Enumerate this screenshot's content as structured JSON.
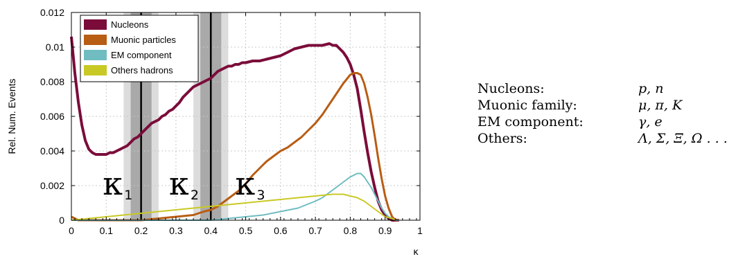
{
  "chart_data": {
    "type": "line",
    "title": "",
    "xlabel": "κ",
    "ylabel": "Rel. Num. Events",
    "xlim": [
      0,
      1
    ],
    "ylim": [
      0,
      0.012
    ],
    "xticks": [
      0,
      0.1,
      0.2,
      0.3,
      0.4,
      0.5,
      0.6,
      0.7,
      0.8,
      0.9,
      1
    ],
    "xtick_labels": [
      "0",
      "0.1",
      "0.2",
      "0.3",
      "0.4",
      "0.5",
      "0.6",
      "0.7",
      "0.8",
      "0.9",
      "1"
    ],
    "yticks": [
      0,
      0.002,
      0.004,
      0.006,
      0.008,
      0.01,
      0.012
    ],
    "ytick_labels": [
      "0",
      "0.002",
      "0.004",
      "0.006",
      "0.008",
      "0.01",
      "0.012"
    ],
    "grid": true,
    "legend_position": "top-left",
    "series": [
      {
        "name": "Nucleons",
        "color": "#7b0c3a",
        "points": [
          [
            0.0,
            0.0106
          ],
          [
            0.01,
            0.0085
          ],
          [
            0.02,
            0.0068
          ],
          [
            0.03,
            0.0055
          ],
          [
            0.04,
            0.0046
          ],
          [
            0.05,
            0.0041
          ],
          [
            0.06,
            0.0039
          ],
          [
            0.07,
            0.0038
          ],
          [
            0.08,
            0.0038
          ],
          [
            0.09,
            0.0038
          ],
          [
            0.1,
            0.0038
          ],
          [
            0.11,
            0.0039
          ],
          [
            0.12,
            0.0039
          ],
          [
            0.13,
            0.004
          ],
          [
            0.14,
            0.0041
          ],
          [
            0.15,
            0.0042
          ],
          [
            0.16,
            0.0043
          ],
          [
            0.17,
            0.0045
          ],
          [
            0.18,
            0.0047
          ],
          [
            0.19,
            0.0048
          ],
          [
            0.2,
            0.005
          ],
          [
            0.21,
            0.0052
          ],
          [
            0.22,
            0.0054
          ],
          [
            0.23,
            0.0056
          ],
          [
            0.24,
            0.0057
          ],
          [
            0.25,
            0.0058
          ],
          [
            0.26,
            0.006
          ],
          [
            0.27,
            0.0061
          ],
          [
            0.28,
            0.0063
          ],
          [
            0.29,
            0.0064
          ],
          [
            0.3,
            0.0066
          ],
          [
            0.31,
            0.0068
          ],
          [
            0.32,
            0.0071
          ],
          [
            0.33,
            0.0073
          ],
          [
            0.34,
            0.0075
          ],
          [
            0.35,
            0.0077
          ],
          [
            0.36,
            0.0078
          ],
          [
            0.37,
            0.0079
          ],
          [
            0.38,
            0.008
          ],
          [
            0.39,
            0.0081
          ],
          [
            0.4,
            0.0082
          ],
          [
            0.41,
            0.0084
          ],
          [
            0.42,
            0.0086
          ],
          [
            0.43,
            0.0087
          ],
          [
            0.44,
            0.0088
          ],
          [
            0.45,
            0.0089
          ],
          [
            0.46,
            0.0089
          ],
          [
            0.47,
            0.009
          ],
          [
            0.48,
            0.009
          ],
          [
            0.49,
            0.0091
          ],
          [
            0.5,
            0.0091
          ],
          [
            0.52,
            0.0092
          ],
          [
            0.54,
            0.0092
          ],
          [
            0.56,
            0.0093
          ],
          [
            0.58,
            0.0094
          ],
          [
            0.6,
            0.0095
          ],
          [
            0.62,
            0.0097
          ],
          [
            0.64,
            0.0099
          ],
          [
            0.66,
            0.01
          ],
          [
            0.68,
            0.0101
          ],
          [
            0.7,
            0.0101
          ],
          [
            0.72,
            0.0101
          ],
          [
            0.74,
            0.0102
          ],
          [
            0.75,
            0.0101
          ],
          [
            0.76,
            0.0101
          ],
          [
            0.77,
            0.0099
          ],
          [
            0.78,
            0.0097
          ],
          [
            0.79,
            0.0094
          ],
          [
            0.8,
            0.009
          ],
          [
            0.81,
            0.0084
          ],
          [
            0.82,
            0.0076
          ],
          [
            0.83,
            0.0064
          ],
          [
            0.84,
            0.0051
          ],
          [
            0.85,
            0.0039
          ],
          [
            0.86,
            0.0028
          ],
          [
            0.87,
            0.0019
          ],
          [
            0.88,
            0.0011
          ],
          [
            0.89,
            0.0006
          ],
          [
            0.9,
            0.0003
          ],
          [
            0.91,
            0.0001
          ],
          [
            0.92,
            0.0
          ],
          [
            0.94,
            0.0
          ]
        ]
      },
      {
        "name": "Muonic particles",
        "color": "#b85d14",
        "points": [
          [
            0.0,
            0.0002
          ],
          [
            0.01,
            0.0001
          ],
          [
            0.02,
            0.0
          ],
          [
            0.05,
            0.0
          ],
          [
            0.1,
            0.0
          ],
          [
            0.15,
            0.0
          ],
          [
            0.2,
            0.0
          ],
          [
            0.25,
            0.0001
          ],
          [
            0.3,
            0.0002
          ],
          [
            0.35,
            0.0003
          ],
          [
            0.38,
            0.0005
          ],
          [
            0.4,
            0.0006
          ],
          [
            0.42,
            0.0008
          ],
          [
            0.44,
            0.0011
          ],
          [
            0.46,
            0.0014
          ],
          [
            0.48,
            0.0017
          ],
          [
            0.5,
            0.0021
          ],
          [
            0.52,
            0.0026
          ],
          [
            0.54,
            0.003
          ],
          [
            0.56,
            0.0034
          ],
          [
            0.58,
            0.0037
          ],
          [
            0.6,
            0.004
          ],
          [
            0.62,
            0.0042
          ],
          [
            0.64,
            0.0045
          ],
          [
            0.66,
            0.0048
          ],
          [
            0.68,
            0.0052
          ],
          [
            0.7,
            0.0056
          ],
          [
            0.72,
            0.0061
          ],
          [
            0.74,
            0.0067
          ],
          [
            0.76,
            0.0073
          ],
          [
            0.78,
            0.0079
          ],
          [
            0.8,
            0.0084
          ],
          [
            0.81,
            0.0085
          ],
          [
            0.82,
            0.0085
          ],
          [
            0.83,
            0.0084
          ],
          [
            0.84,
            0.0079
          ],
          [
            0.85,
            0.0071
          ],
          [
            0.86,
            0.0061
          ],
          [
            0.87,
            0.0049
          ],
          [
            0.88,
            0.0036
          ],
          [
            0.89,
            0.0024
          ],
          [
            0.9,
            0.0014
          ],
          [
            0.91,
            0.0007
          ],
          [
            0.92,
            0.0002
          ],
          [
            0.93,
            0.0
          ],
          [
            0.94,
            0.0
          ]
        ]
      },
      {
        "name": "EM component",
        "color": "#6fbcc1",
        "points": [
          [
            0.0,
            0.0
          ],
          [
            0.3,
            0.0
          ],
          [
            0.4,
            0.0
          ],
          [
            0.45,
            0.0001
          ],
          [
            0.5,
            0.0002
          ],
          [
            0.55,
            0.0003
          ],
          [
            0.6,
            0.0005
          ],
          [
            0.65,
            0.0007
          ],
          [
            0.7,
            0.0011
          ],
          [
            0.72,
            0.0013
          ],
          [
            0.74,
            0.0016
          ],
          [
            0.76,
            0.0019
          ],
          [
            0.78,
            0.0022
          ],
          [
            0.8,
            0.0025
          ],
          [
            0.82,
            0.0027
          ],
          [
            0.83,
            0.0027
          ],
          [
            0.84,
            0.0025
          ],
          [
            0.85,
            0.0022
          ],
          [
            0.86,
            0.0019
          ],
          [
            0.87,
            0.0015
          ],
          [
            0.88,
            0.0011
          ],
          [
            0.89,
            0.0007
          ],
          [
            0.9,
            0.0004
          ],
          [
            0.91,
            0.0002
          ],
          [
            0.92,
            0.0001
          ],
          [
            0.93,
            0.0
          ],
          [
            0.94,
            0.0
          ]
        ]
      },
      {
        "name": "Others hadrons",
        "color": "#c9c925",
        "points": [
          [
            0.0,
            0.0
          ],
          [
            0.05,
            0.0001
          ],
          [
            0.1,
            0.0002
          ],
          [
            0.15,
            0.0003
          ],
          [
            0.2,
            0.0004
          ],
          [
            0.25,
            0.0005
          ],
          [
            0.3,
            0.0006
          ],
          [
            0.35,
            0.0007
          ],
          [
            0.4,
            0.0008
          ],
          [
            0.45,
            0.0009
          ],
          [
            0.5,
            0.001
          ],
          [
            0.55,
            0.0011
          ],
          [
            0.6,
            0.0012
          ],
          [
            0.65,
            0.0013
          ],
          [
            0.7,
            0.0014
          ],
          [
            0.75,
            0.0015
          ],
          [
            0.78,
            0.0015
          ],
          [
            0.8,
            0.0014
          ],
          [
            0.82,
            0.0013
          ],
          [
            0.84,
            0.0011
          ],
          [
            0.86,
            0.0008
          ],
          [
            0.88,
            0.0005
          ],
          [
            0.9,
            0.0002
          ],
          [
            0.92,
            0.0001
          ],
          [
            0.93,
            0.0
          ]
        ]
      }
    ],
    "vertical_markers": [
      0.2,
      0.4
    ],
    "shaded_bands": [
      {
        "from": 0.15,
        "to": 0.25,
        "shade": "light"
      },
      {
        "from": 0.17,
        "to": 0.23,
        "shade": "dark"
      },
      {
        "from": 0.35,
        "to": 0.45,
        "shade": "light"
      },
      {
        "from": 0.37,
        "to": 0.43,
        "shade": "dark"
      }
    ],
    "annotations": [
      {
        "symbol": "κ",
        "subscript": "1",
        "x": 0.09
      },
      {
        "symbol": "κ",
        "subscript": "2",
        "x": 0.28
      },
      {
        "symbol": "κ",
        "subscript": "3",
        "x": 0.47
      }
    ]
  },
  "side_table": {
    "rows": [
      {
        "category": "Nucleons:",
        "particles": "p, n"
      },
      {
        "category": "Muonic family:",
        "particles": "μ, π, K"
      },
      {
        "category": "EM component:",
        "particles": "γ, e"
      },
      {
        "category": "Others:",
        "particles": "Λ, Σ, Ξ, Ω . . ."
      }
    ]
  }
}
